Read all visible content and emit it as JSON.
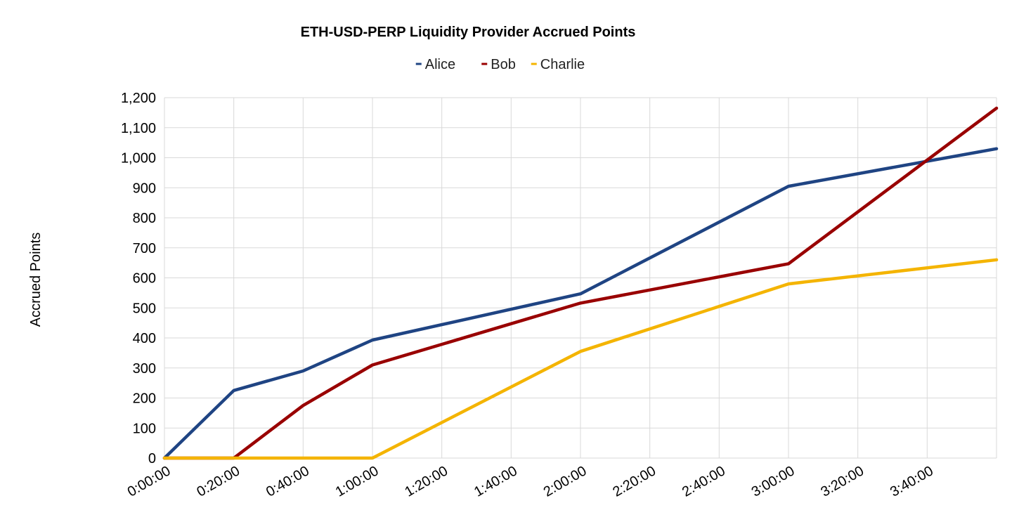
{
  "chart_data": {
    "type": "line",
    "title": "ETH-USD-PERP Liquidity Provider Accrued Points",
    "xlabel": "",
    "ylabel": "Accrued Points",
    "x": [
      "0:00:00",
      "0:20:00",
      "0:40:00",
      "1:00:00",
      "1:20:00",
      "1:40:00",
      "2:00:00",
      "2:20:00",
      "2:40:00",
      "3:00:00",
      "3:20:00",
      "3:40:00"
    ],
    "x_minutes_max": 240,
    "ylim": [
      0,
      1200
    ],
    "yticks": [
      "0",
      "100",
      "200",
      "300",
      "400",
      "500",
      "600",
      "700",
      "800",
      "900",
      "1,000",
      "1,100",
      "1,200"
    ],
    "grid": true,
    "legend_position": "top",
    "series": [
      {
        "name": "Alice",
        "color": "#1f4483",
        "points": [
          [
            0,
            0
          ],
          [
            20,
            225
          ],
          [
            40,
            290
          ],
          [
            60,
            393
          ],
          [
            120,
            547
          ],
          [
            180,
            905
          ],
          [
            240,
            1030
          ]
        ]
      },
      {
        "name": "Bob",
        "color": "#990000",
        "points": [
          [
            0,
            0
          ],
          [
            20,
            0
          ],
          [
            40,
            175
          ],
          [
            60,
            310
          ],
          [
            120,
            516
          ],
          [
            180,
            647
          ],
          [
            240,
            1165
          ]
        ]
      },
      {
        "name": "Charlie",
        "color": "#f4b400",
        "points": [
          [
            0,
            0
          ],
          [
            60,
            0
          ],
          [
            120,
            355
          ],
          [
            180,
            580
          ],
          [
            240,
            660
          ]
        ]
      }
    ]
  }
}
